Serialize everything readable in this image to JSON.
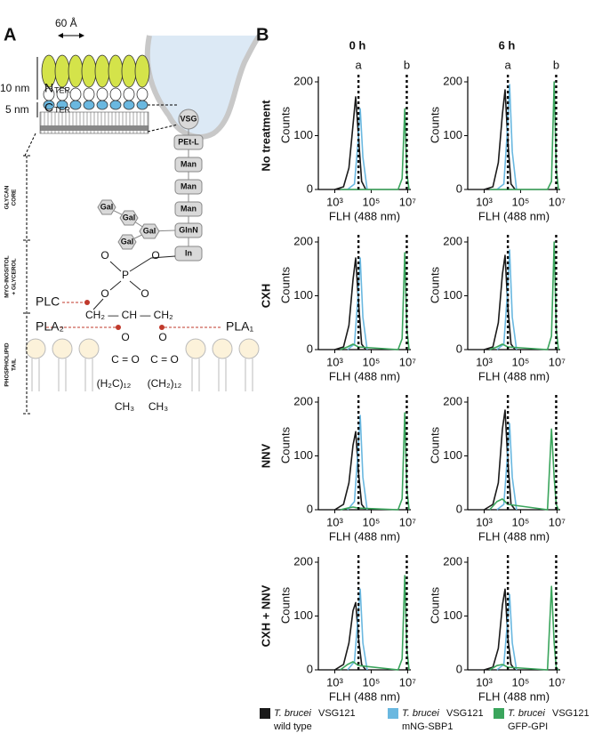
{
  "diagram": {
    "label": "A",
    "width_label": "60 Å",
    "height_labels": [
      "10 nm",
      "5 nm"
    ],
    "n_term": [
      "N",
      "TER"
    ],
    "c_term": [
      "C",
      "TER"
    ],
    "glycan": [
      "VSG",
      "PEt-L",
      "Man",
      "Man",
      "Man",
      "GlnN",
      "In"
    ],
    "galactose": [
      "Gal",
      "Gal",
      "Gal",
      "Gal"
    ],
    "phosphate": [
      "O",
      "O",
      "P",
      "O",
      "O"
    ],
    "enzymes": [
      "PLC",
      "PLA₂",
      "PLA₁"
    ],
    "glycerol": "CH₂ — CH — CH₂",
    "tail": [
      "O",
      "O",
      "C = O",
      "C = O",
      "(H₂C)₁₂",
      "(CH₂)₁₂",
      "CH₃",
      "CH₃"
    ],
    "regions": [
      [
        "GLYCAN",
        "CORE"
      ],
      [
        "MYO-INOSITOL",
        "+ GLYCEROL"
      ],
      [
        "PHOSPHOLIPID",
        "TAIL"
      ]
    ]
  },
  "figure": {
    "panel": "B",
    "columns": [
      "0 h",
      "6 h"
    ],
    "rows": [
      "No treatment",
      "CXH",
      "NNV",
      "CXH + NNV"
    ],
    "markers": [
      {
        "label": "a",
        "value": 20000
      },
      {
        "label": "b",
        "value": 9000000
      }
    ],
    "legend": {
      "species": "T. brucei",
      "strain": "VSG121"
    }
  },
  "chart_data": [
    {
      "type": "line",
      "xlabel": "FLH (488 nm)",
      "ylabel": "Counts",
      "xscale": "log",
      "xlim": [
        125,
        15000000
      ],
      "xticks": [
        {
          "value": 1000,
          "label": "10³"
        },
        {
          "value": 100000,
          "label": "10⁵"
        },
        {
          "value": 10000000,
          "label": "10⁷"
        }
      ],
      "ylim": [
        0,
        200
      ],
      "yticks": [
        0,
        100,
        200
      ],
      "series": [
        {
          "name": "wild type",
          "color": "#1a1a1a",
          "x": [
            1000,
            3000,
            6000,
            10000,
            14000,
            20000,
            30000,
            50000
          ],
          "values": [
            0,
            5,
            40,
            120,
            172,
            100,
            15,
            0
          ]
        },
        {
          "name": "mNG-SBP1",
          "color": "#6ab8e0",
          "x": [
            5000,
            12000,
            18000,
            25000,
            35000,
            60000
          ],
          "values": [
            0,
            10,
            80,
            150,
            60,
            0
          ]
        },
        {
          "name": "GFP-GPI",
          "color": "#3aa55c",
          "x": [
            2000,
            5000,
            10000,
            20000,
            3000000,
            5000000,
            7000000,
            9000000,
            12000000
          ],
          "values": [
            0,
            0,
            0,
            0,
            0,
            20,
            150,
            30,
            0
          ]
        }
      ]
    },
    {
      "type": "line",
      "xlabel": "FLH (488 nm)",
      "ylabel": "Counts",
      "xscale": "log",
      "xlim": [
        125,
        15000000
      ],
      "xticks": [
        {
          "value": 1000,
          "label": "10³"
        },
        {
          "value": 100000,
          "label": "10⁵"
        },
        {
          "value": 10000000,
          "label": "10⁷"
        }
      ],
      "ylim": [
        0,
        200
      ],
      "yticks": [
        0,
        100,
        200
      ],
      "series": [
        {
          "name": "wild type",
          "color": "#1a1a1a",
          "x": [
            1000,
            3000,
            6000,
            10000,
            14000,
            20000,
            30000,
            50000
          ],
          "values": [
            0,
            5,
            50,
            140,
            185,
            90,
            10,
            0
          ]
        },
        {
          "name": "mNG-SBP1",
          "color": "#6ab8e0",
          "x": [
            5000,
            12000,
            18000,
            25000,
            35000,
            60000
          ],
          "values": [
            0,
            10,
            100,
            195,
            70,
            0
          ]
        },
        {
          "name": "GFP-GPI",
          "color": "#3aa55c",
          "x": [
            2000,
            5000,
            10000,
            20000,
            3000000,
            5000000,
            7000000,
            9000000,
            12000000
          ],
          "values": [
            0,
            0,
            0,
            0,
            0,
            15,
            200,
            40,
            0
          ]
        }
      ]
    },
    {
      "type": "line",
      "xlabel": "FLH (488 nm)",
      "ylabel": "Counts",
      "xscale": "log",
      "xlim": [
        125,
        15000000
      ],
      "xticks": [
        {
          "value": 1000,
          "label": "10³"
        },
        {
          "value": 100000,
          "label": "10⁵"
        },
        {
          "value": 10000000,
          "label": "10⁷"
        }
      ],
      "ylim": [
        0,
        200
      ],
      "yticks": [
        0,
        100,
        200
      ],
      "series": [
        {
          "name": "wild type",
          "color": "#1a1a1a",
          "x": [
            1000,
            3000,
            6000,
            10000,
            14000,
            20000,
            30000,
            50000
          ],
          "values": [
            0,
            5,
            45,
            130,
            170,
            90,
            10,
            0
          ]
        },
        {
          "name": "mNG-SBP1",
          "color": "#6ab8e0",
          "x": [
            5000,
            12000,
            18000,
            25000,
            35000,
            60000
          ],
          "values": [
            0,
            10,
            90,
            170,
            60,
            0
          ]
        },
        {
          "name": "GFP-GPI",
          "color": "#3aa55c",
          "x": [
            2000,
            5000,
            10000,
            20000,
            3000000,
            5000000,
            7000000,
            9000000,
            12000000
          ],
          "values": [
            0,
            5,
            10,
            5,
            0,
            20,
            180,
            40,
            0
          ]
        }
      ]
    },
    {
      "type": "line",
      "xlabel": "FLH (488 nm)",
      "ylabel": "Counts",
      "xscale": "log",
      "xlim": [
        125,
        15000000
      ],
      "xticks": [
        {
          "value": 1000,
          "label": "10³"
        },
        {
          "value": 100000,
          "label": "10⁵"
        },
        {
          "value": 10000000,
          "label": "10⁷"
        }
      ],
      "ylim": [
        0,
        200
      ],
      "yticks": [
        0,
        100,
        200
      ],
      "series": [
        {
          "name": "wild type",
          "color": "#1a1a1a",
          "x": [
            1000,
            3000,
            6000,
            10000,
            14000,
            20000,
            30000,
            50000
          ],
          "values": [
            0,
            5,
            50,
            140,
            175,
            80,
            10,
            0
          ]
        },
        {
          "name": "mNG-SBP1",
          "color": "#6ab8e0",
          "x": [
            5000,
            12000,
            18000,
            25000,
            35000,
            60000
          ],
          "values": [
            0,
            10,
            95,
            185,
            60,
            0
          ]
        },
        {
          "name": "GFP-GPI",
          "color": "#3aa55c",
          "x": [
            2000,
            5000,
            10000,
            20000,
            3000000,
            5000000,
            7000000,
            9000000,
            12000000
          ],
          "values": [
            0,
            5,
            10,
            5,
            0,
            25,
            200,
            40,
            0
          ]
        }
      ]
    },
    {
      "type": "line",
      "xlabel": "FLH (488 nm)",
      "ylabel": "Counts",
      "xscale": "log",
      "xlim": [
        125,
        15000000
      ],
      "xticks": [
        {
          "value": 1000,
          "label": "10³"
        },
        {
          "value": 100000,
          "label": "10⁵"
        },
        {
          "value": 10000000,
          "label": "10⁷"
        }
      ],
      "ylim": [
        0,
        200
      ],
      "yticks": [
        0,
        100,
        200
      ],
      "series": [
        {
          "name": "wild type",
          "color": "#1a1a1a",
          "x": [
            1000,
            3000,
            6000,
            10000,
            14000,
            20000,
            30000,
            50000
          ],
          "values": [
            0,
            10,
            50,
            120,
            145,
            70,
            10,
            0
          ]
        },
        {
          "name": "mNG-SBP1",
          "color": "#6ab8e0",
          "x": [
            5000,
            12000,
            18000,
            25000,
            35000,
            60000
          ],
          "values": [
            0,
            15,
            100,
            175,
            60,
            0
          ]
        },
        {
          "name": "GFP-GPI",
          "color": "#3aa55c",
          "x": [
            2000,
            5000,
            10000,
            20000,
            3000000,
            5000000,
            7000000,
            9000000,
            12000000
          ],
          "values": [
            0,
            3,
            5,
            3,
            0,
            20,
            180,
            40,
            0
          ]
        }
      ]
    },
    {
      "type": "line",
      "xlabel": "FLH (488 nm)",
      "ylabel": "Counts",
      "xscale": "log",
      "xlim": [
        125,
        15000000
      ],
      "xticks": [
        {
          "value": 1000,
          "label": "10³"
        },
        {
          "value": 100000,
          "label": "10⁵"
        },
        {
          "value": 10000000,
          "label": "10⁷"
        }
      ],
      "ylim": [
        0,
        200
      ],
      "yticks": [
        0,
        100,
        200
      ],
      "series": [
        {
          "name": "wild type",
          "color": "#1a1a1a",
          "x": [
            1000,
            3000,
            6000,
            10000,
            14000,
            20000,
            30000,
            50000
          ],
          "values": [
            0,
            10,
            50,
            150,
            185,
            90,
            10,
            0
          ]
        },
        {
          "name": "mNG-SBP1",
          "color": "#6ab8e0",
          "x": [
            5000,
            12000,
            18000,
            25000,
            35000,
            60000
          ],
          "values": [
            0,
            10,
            90,
            160,
            60,
            0
          ]
        },
        {
          "name": "GFP-GPI",
          "color": "#3aa55c",
          "x": [
            2000,
            5000,
            10000,
            20000,
            3000000,
            5000000,
            7000000,
            9000000,
            12000000
          ],
          "values": [
            0,
            15,
            20,
            10,
            0,
            150,
            60,
            10,
            0
          ]
        }
      ]
    },
    {
      "type": "line",
      "xlabel": "FLH (488 nm)",
      "ylabel": "Counts",
      "xscale": "log",
      "xlim": [
        125,
        15000000
      ],
      "xticks": [
        {
          "value": 1000,
          "label": "10³"
        },
        {
          "value": 100000,
          "label": "10⁵"
        },
        {
          "value": 10000000,
          "label": "10⁷"
        }
      ],
      "ylim": [
        0,
        200
      ],
      "yticks": [
        0,
        100,
        200
      ],
      "series": [
        {
          "name": "wild type",
          "color": "#1a1a1a",
          "x": [
            1000,
            3000,
            6000,
            10000,
            14000,
            20000,
            30000,
            50000
          ],
          "values": [
            0,
            10,
            50,
            110,
            125,
            60,
            10,
            0
          ]
        },
        {
          "name": "mNG-SBP1",
          "color": "#6ab8e0",
          "x": [
            5000,
            12000,
            18000,
            25000,
            35000,
            60000
          ],
          "values": [
            0,
            15,
            90,
            150,
            50,
            0
          ]
        },
        {
          "name": "GFP-GPI",
          "color": "#3aa55c",
          "x": [
            2000,
            5000,
            10000,
            20000,
            3000000,
            5000000,
            7000000,
            9000000,
            12000000
          ],
          "values": [
            0,
            10,
            15,
            8,
            0,
            20,
            175,
            40,
            0
          ]
        }
      ]
    },
    {
      "type": "line",
      "xlabel": "FLH (488 nm)",
      "ylabel": "Counts",
      "xscale": "log",
      "xlim": [
        125,
        15000000
      ],
      "xticks": [
        {
          "value": 1000,
          "label": "10³"
        },
        {
          "value": 100000,
          "label": "10⁵"
        },
        {
          "value": 10000000,
          "label": "10⁷"
        }
      ],
      "ylim": [
        0,
        200
      ],
      "yticks": [
        0,
        100,
        200
      ],
      "series": [
        {
          "name": "wild type",
          "color": "#1a1a1a",
          "x": [
            1000,
            3000,
            6000,
            10000,
            14000,
            20000,
            30000,
            50000
          ],
          "values": [
            0,
            5,
            40,
            120,
            150,
            60,
            10,
            0
          ]
        },
        {
          "name": "mNG-SBP1",
          "color": "#6ab8e0",
          "x": [
            5000,
            12000,
            18000,
            25000,
            35000,
            60000
          ],
          "values": [
            0,
            10,
            80,
            140,
            50,
            0
          ]
        },
        {
          "name": "GFP-GPI",
          "color": "#3aa55c",
          "x": [
            2000,
            5000,
            10000,
            20000,
            3000000,
            5000000,
            7000000,
            9000000,
            12000000
          ],
          "values": [
            0,
            8,
            10,
            5,
            0,
            155,
            50,
            5,
            0
          ]
        }
      ]
    }
  ]
}
